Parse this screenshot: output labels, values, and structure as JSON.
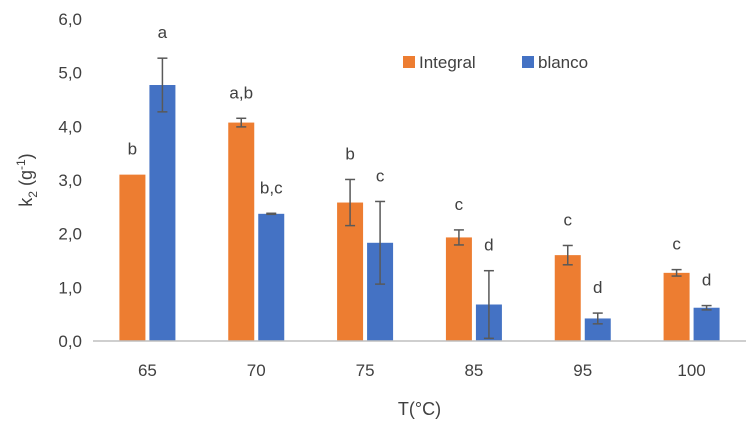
{
  "chart_data": {
    "type": "bar",
    "xlabel": "T(°C)",
    "ylabel": {
      "main": "k",
      "sub": "2",
      "unit_pre": " (g",
      "unit_sup": "-1",
      "unit_post": ")"
    },
    "ylim": [
      0,
      6
    ],
    "yticks": [
      "0,0",
      "1,0",
      "2,0",
      "3,0",
      "4,0",
      "5,0",
      "6,0"
    ],
    "grid": false,
    "legend_position": "top-right",
    "categories": [
      "65",
      "70",
      "75",
      "85",
      "95",
      "100"
    ],
    "series": [
      {
        "name": "Integral",
        "color": "#ED7D31",
        "values": [
          3.1,
          4.07,
          2.58,
          1.93,
          1.6,
          1.27
        ],
        "errors": [
          0,
          0.08,
          0.43,
          0.14,
          0.18,
          0.06
        ],
        "labels": [
          "b",
          "a,b",
          "b",
          "c",
          "c",
          "c"
        ]
      },
      {
        "name": "blanco",
        "color": "#4472C4",
        "values": [
          4.77,
          2.37,
          1.83,
          0.68,
          0.42,
          0.62
        ],
        "errors": [
          0.5,
          0.01,
          0.77,
          0.63,
          0.1,
          0.04
        ],
        "labels": [
          "a",
          "b,c",
          "c",
          "d",
          "d",
          "d"
        ]
      }
    ]
  }
}
